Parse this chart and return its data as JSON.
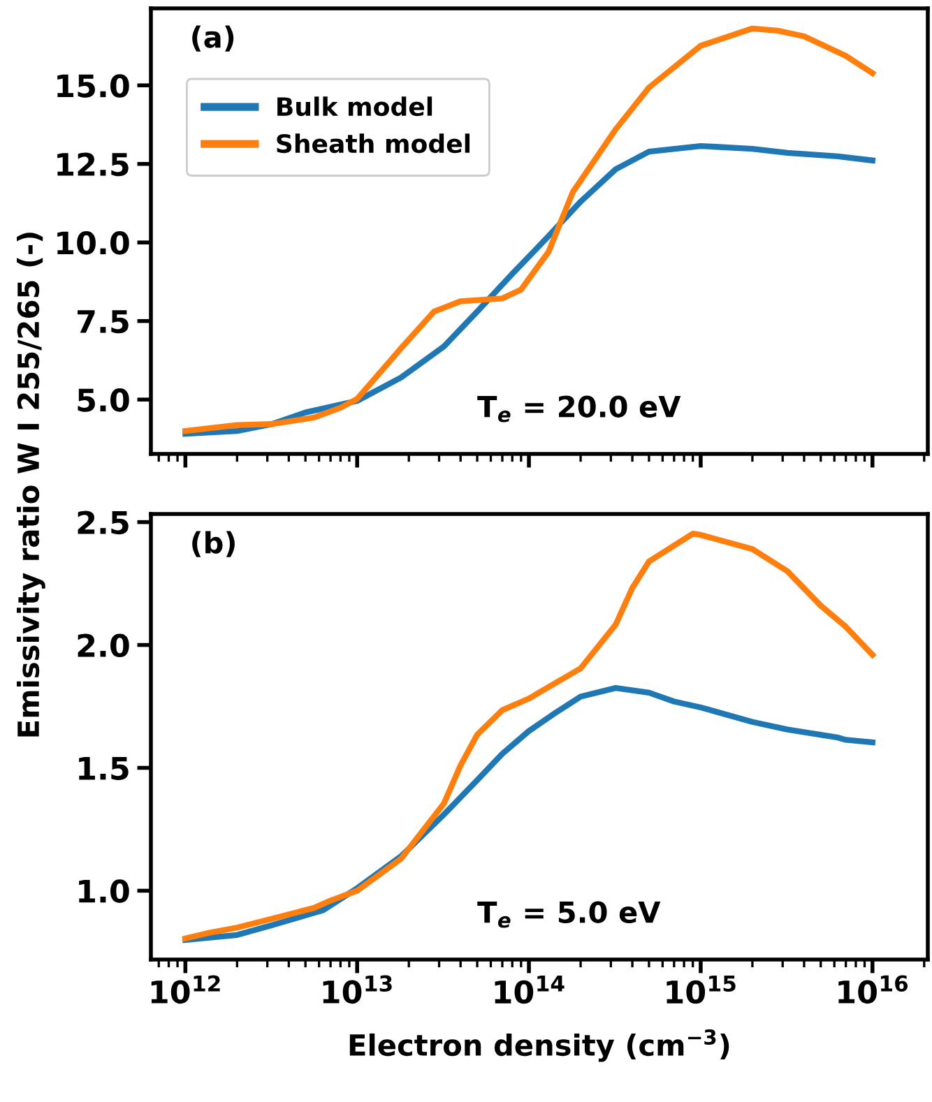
{
  "chart_data": [
    {
      "type": "line",
      "ylabel": "Emissivity ratio W I 255/265 (-)",
      "annotations": [
        "(a)",
        "T$_{e}$ = 20.0 eV"
      ],
      "legend": "top left",
      "log": "x",
      "tick_labels": "y",
      "xlim": [
        630000000000.0,
        2.1e+16
      ],
      "ylim": [
        3.27,
        17.45
      ],
      "yticks": [
        {
          "value": 5,
          "label": "5.0"
        },
        {
          "value": 7.5,
          "label": "7.5"
        },
        {
          "value": 10,
          "label": "10.0"
        },
        {
          "value": 12.5,
          "label": "12.5"
        },
        {
          "value": 15,
          "label": "15.0"
        }
      ],
      "xticks": [
        1000000000000.0,
        10000000000000.0,
        100000000000000.0,
        1000000000000000.0,
        1e+16
      ],
      "series": [
        {
          "name": "Bulk model",
          "color": "#1f77b4",
          "x": [
            1000000000000.0,
            2000000000000.0,
            3200000000000.0,
            5000000000000.0,
            10000000000000.0,
            18000000000000.0,
            32000000000000.0,
            50000000000000.0,
            80000000000000.0,
            130000000000000.0,
            200000000000000.0,
            320000000000000.0,
            500000000000000.0,
            1000000000000000.0,
            2000000000000000.0,
            3200000000000000.0,
            6300000000000000.0,
            1e+16
          ],
          "values": [
            3.91,
            4.0,
            4.22,
            4.59,
            4.96,
            5.7,
            6.69,
            7.8,
            9.0,
            10.2,
            11.3,
            12.33,
            12.89,
            13.07,
            12.98,
            12.85,
            12.74,
            12.61
          ]
        },
        {
          "name": "Sheath model",
          "color": "#ff7f0e",
          "x": [
            1000000000000.0,
            2000000000000.0,
            3200000000000.0,
            5600000000000.0,
            8000000000000.0,
            10000000000000.0,
            18000000000000.0,
            28000000000000.0,
            40000000000000.0,
            70000000000000.0,
            90000000000000.0,
            130000000000000.0,
            180000000000000.0,
            320000000000000.0,
            500000000000000.0,
            1000000000000000.0,
            2000000000000000.0,
            2800000000000000.0,
            4000000000000000.0,
            7000000000000000.0,
            1e+16
          ],
          "values": [
            4.0,
            4.19,
            4.22,
            4.43,
            4.74,
            5.02,
            6.63,
            7.8,
            8.13,
            8.22,
            8.5,
            9.7,
            11.6,
            13.6,
            14.93,
            16.26,
            16.81,
            16.74,
            16.56,
            15.94,
            15.39
          ]
        }
      ]
    },
    {
      "type": "line",
      "xlabel": "Electron density (cm$^{−3}$)",
      "annotations": [
        "(b)",
        "T$_{e}$ = 5.0 eV"
      ],
      "log": "x",
      "xlim": [
        630000000000.0,
        2.1e+16
      ],
      "ylim": [
        0.72,
        2.533
      ],
      "yticks": [
        {
          "value": 1,
          "label": "1.0"
        },
        {
          "value": 1.5,
          "label": "1.5"
        },
        {
          "value": 2,
          "label": "2.0"
        },
        {
          "value": 2.5,
          "label": "2.5"
        }
      ],
      "xticks": [
        {
          "value": 1000000000000.0,
          "label": "10$^{12}$"
        },
        {
          "value": 10000000000000.0,
          "label": "10$^{13}$"
        },
        {
          "value": 100000000000000.0,
          "label": "10$^{14}$"
        },
        {
          "value": 1000000000000000.0,
          "label": "10$^{15}$"
        },
        {
          "value": 1e+16,
          "label": "10$^{16}$"
        }
      ],
      "series": [
        {
          "color": "#1f77b4",
          "x": [
            1000000000000.0,
            2000000000000.0,
            3200000000000.0,
            6300000000000.0,
            10000000000000.0,
            18000000000000.0,
            32000000000000.0,
            50000000000000.0,
            70000000000000.0,
            100000000000000.0,
            140000000000000.0,
            200000000000000.0,
            320000000000000.0,
            500000000000000.0,
            700000000000000.0,
            1000000000000000.0,
            2000000000000000.0,
            3200000000000000.0,
            6300000000000000.0,
            7000000000000000.0,
            1e+16
          ],
          "values": [
            0.8,
            0.82,
            0.86,
            0.92,
            1.01,
            1.14,
            1.31,
            1.45,
            1.557,
            1.65,
            1.72,
            1.79,
            1.825,
            1.806,
            1.77,
            1.746,
            1.687,
            1.656,
            1.623,
            1.614,
            1.604
          ]
        },
        {
          "color": "#ff7f0e",
          "x": [
            1000000000000.0,
            1400000000000.0,
            2000000000000.0,
            3200000000000.0,
            5600000000000.0,
            7000000000000.0,
            10000000000000.0,
            18000000000000.0,
            32000000000000.0,
            40000000000000.0,
            50000000000000.0,
            70000000000000.0,
            100000000000000.0,
            200000000000000.0,
            320000000000000.0,
            400000000000000.0,
            500000000000000.0,
            900000000000000.0,
            1000000000000000.0,
            2000000000000000.0,
            3200000000000000.0,
            5000000000000000.0,
            7000000000000000.0,
            1e+16
          ],
          "values": [
            0.806,
            0.83,
            0.85,
            0.886,
            0.93,
            0.96,
            1.0,
            1.13,
            1.355,
            1.51,
            1.635,
            1.735,
            1.782,
            1.905,
            2.083,
            2.232,
            2.34,
            2.453,
            2.448,
            2.39,
            2.3,
            2.16,
            2.074,
            1.96
          ]
        }
      ]
    }
  ]
}
